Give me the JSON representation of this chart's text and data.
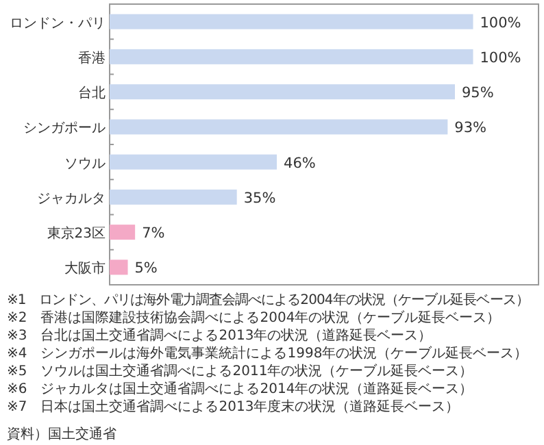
{
  "chart_data": {
    "type": "bar",
    "orientation": "horizontal",
    "categories": [
      "ロンドン・パリ",
      "香港",
      "台北",
      "シンガポール",
      "ソウル",
      "ジャカルタ",
      "東京23区",
      "大阪市"
    ],
    "values": [
      100,
      100,
      95,
      93,
      46,
      35,
      7,
      5
    ],
    "colors": [
      "#c9d8f0",
      "#c9d8f0",
      "#c9d8f0",
      "#c9d8f0",
      "#c9d8f0",
      "#c9d8f0",
      "#f4a9c6",
      "#f4a9c6"
    ],
    "value_labels": [
      "100%",
      "100%",
      "95%",
      "93%",
      "46%",
      "35%",
      "7%",
      "5%"
    ],
    "xlim": [
      0,
      118
    ],
    "annotations": [
      "※1　ロンドン、パリは海外電力調査会調べによる2004年の状況（ケーブル延長ベース）",
      "※2　香港は国際建設技術協会調べによる2004年の状況（ケーブル延長ベース）",
      "※3　台北は国土交通省調べによる2013年の状況（道路延長ベース）",
      "※4　シンガポールは海外電気事業統計による1998年の状況（ケーブル延長ベース）",
      "※5　ソウルは国土交通省調べによる2011年の状況（ケーブル延長ベース）",
      "※6　ジャカルタは国土交通省調べによる2014年の状況（道路延長ベース）",
      "※7　日本は国土交通省調べによる2013年度末の状況（道路延長ベース）",
      "資料）国土交通省"
    ]
  }
}
